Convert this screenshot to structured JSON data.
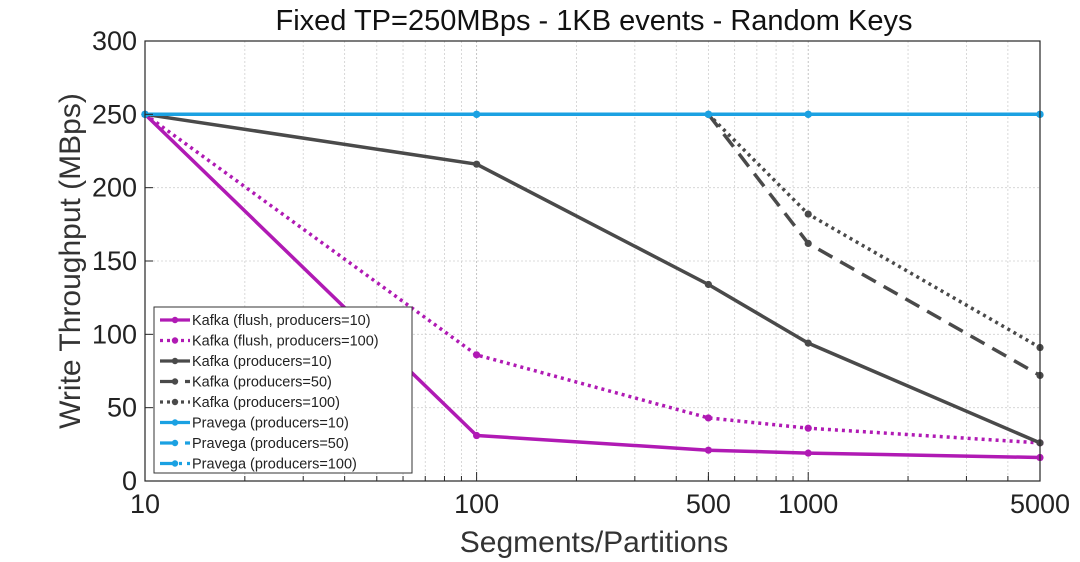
{
  "chart_data": {
    "type": "line",
    "title": "Fixed TP=250MBps - 1KB events - Random Keys",
    "xlabel": "Segments/Partitions",
    "ylabel": "Write Throughput (MBps)",
    "xscale": "log",
    "xlim": [
      10,
      5000
    ],
    "ylim": [
      0,
      300
    ],
    "xticks": [
      10,
      100,
      500,
      1000,
      5000
    ],
    "xtick_labels": [
      "10",
      "100",
      "500",
      "1000",
      "5000"
    ],
    "yticks": [
      0,
      50,
      100,
      150,
      200,
      250,
      300
    ],
    "ytick_labels": [
      "0",
      "50",
      "100",
      "150",
      "200",
      "250",
      "300"
    ],
    "grid": true,
    "legend_position": "lower-left",
    "series": [
      {
        "name": "Kafka (flush, producers=10)",
        "color": "#b01ab4",
        "style": "solid",
        "x": [
          10,
          100,
          500,
          1000,
          5000
        ],
        "values": [
          250,
          31,
          21,
          19,
          16
        ]
      },
      {
        "name": "Kafka (flush, producers=100)",
        "color": "#b01ab4",
        "style": "dotted",
        "x": [
          10,
          100,
          500,
          1000,
          5000
        ],
        "values": [
          250,
          86,
          43,
          36,
          26
        ]
      },
      {
        "name": "Kafka (producers=10)",
        "color": "#4a4a4a",
        "style": "solid",
        "x": [
          10,
          100,
          500,
          1000,
          5000
        ],
        "values": [
          250,
          216,
          134,
          94,
          26
        ]
      },
      {
        "name": "Kafka (producers=50)",
        "color": "#4a4a4a",
        "style": "dashed",
        "x": [
          500,
          1000,
          5000
        ],
        "values": [
          250,
          162,
          72
        ]
      },
      {
        "name": "Kafka (producers=100)",
        "color": "#4a4a4a",
        "style": "dotted",
        "x": [
          500,
          1000,
          5000
        ],
        "values": [
          250,
          182,
          91
        ]
      },
      {
        "name": "Pravega (producers=10)",
        "color": "#1ba1e2",
        "style": "solid",
        "x": [
          10,
          100,
          500,
          1000,
          5000
        ],
        "values": [
          250,
          250,
          250,
          250,
          250
        ]
      },
      {
        "name": "Pravega (producers=50)",
        "color": "#1ba1e2",
        "style": "dashed",
        "x": [
          10,
          100,
          500,
          1000,
          5000
        ],
        "values": [
          250,
          250,
          250,
          250,
          250
        ]
      },
      {
        "name": "Pravega (producers=100)",
        "color": "#1ba1e2",
        "style": "dashdot",
        "x": [
          10,
          100,
          500,
          1000,
          5000
        ],
        "values": [
          250,
          250,
          250,
          250,
          250
        ]
      }
    ]
  }
}
